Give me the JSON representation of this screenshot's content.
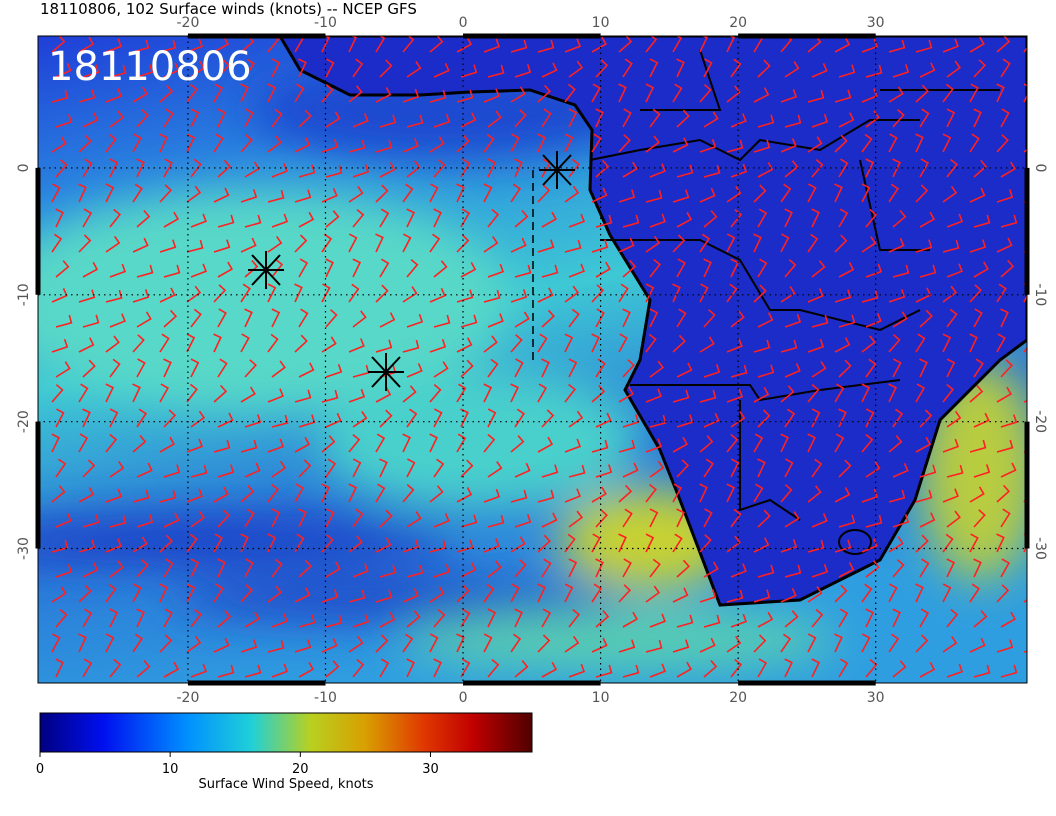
{
  "header": {
    "title": "18110806, 102 Surface winds (knots) -- NCEP GFS",
    "stamp": "18110806"
  },
  "map": {
    "lon_ticks": [
      -20,
      -10,
      0,
      10,
      20,
      30
    ],
    "lat_ticks": [
      0,
      -10,
      -20,
      -30
    ],
    "lon_range": [
      -30.9,
      41
    ],
    "lat_range": [
      10.4,
      -40.6
    ],
    "grid": true
  },
  "colorbar": {
    "label": "Surface Wind Speed, knots",
    "ticks": [
      0,
      10,
      20,
      30
    ],
    "range": [
      0,
      37.8
    ]
  }
}
